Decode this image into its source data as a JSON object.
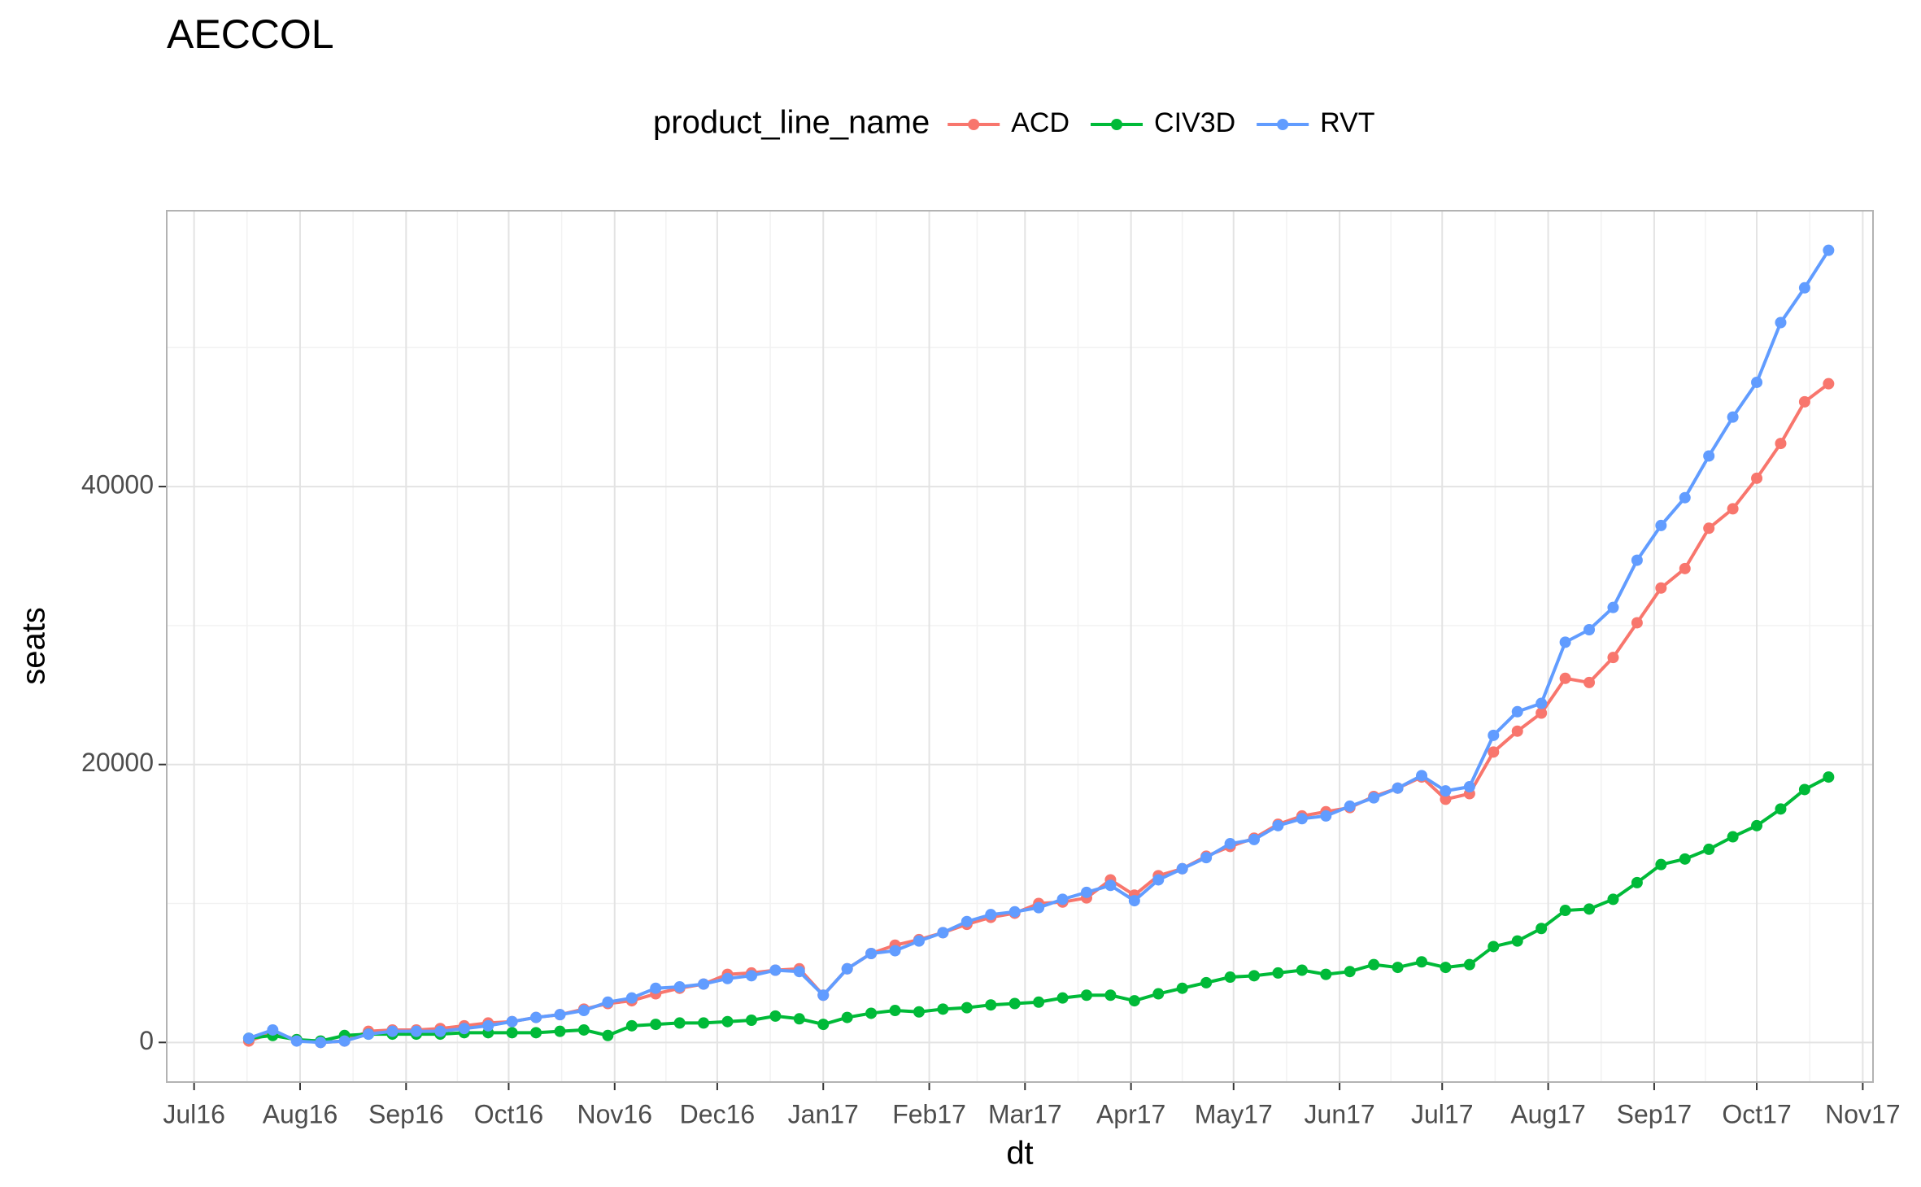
{
  "chart_data": {
    "type": "line",
    "title": "AECCOL",
    "x_label": "dt",
    "y_label": "seats",
    "legend_title": "product_line_name",
    "legend_position": "top",
    "x": [
      "2016-07-17",
      "2016-07-24",
      "2016-07-31",
      "2016-08-07",
      "2016-08-14",
      "2016-08-21",
      "2016-08-28",
      "2016-09-04",
      "2016-09-11",
      "2016-09-18",
      "2016-09-25",
      "2016-10-02",
      "2016-10-09",
      "2016-10-16",
      "2016-10-23",
      "2016-10-30",
      "2016-11-06",
      "2016-11-13",
      "2016-11-20",
      "2016-11-27",
      "2016-12-04",
      "2016-12-11",
      "2016-12-18",
      "2016-12-25",
      "2017-01-01",
      "2017-01-08",
      "2017-01-15",
      "2017-01-22",
      "2017-01-29",
      "2017-02-05",
      "2017-02-12",
      "2017-02-19",
      "2017-02-26",
      "2017-03-05",
      "2017-03-12",
      "2017-03-19",
      "2017-03-26",
      "2017-04-02",
      "2017-04-09",
      "2017-04-16",
      "2017-04-23",
      "2017-04-30",
      "2017-05-07",
      "2017-05-14",
      "2017-05-21",
      "2017-05-28",
      "2017-06-04",
      "2017-06-11",
      "2017-06-18",
      "2017-06-25",
      "2017-07-02",
      "2017-07-09",
      "2017-07-16",
      "2017-07-23",
      "2017-07-30",
      "2017-08-06",
      "2017-08-13",
      "2017-08-20",
      "2017-08-27",
      "2017-09-03",
      "2017-09-10",
      "2017-09-17",
      "2017-09-24",
      "2017-10-01",
      "2017-10-08",
      "2017-10-15",
      "2017-10-22"
    ],
    "series": [
      {
        "name": "ACD",
        "color": "#F8766D",
        "values": [
          100,
          700,
          200,
          0,
          100,
          800,
          900,
          900,
          1000,
          1200,
          1400,
          1500,
          1800,
          2000,
          2400,
          2800,
          3000,
          3500,
          3900,
          4200,
          4900,
          5000,
          5200,
          5300,
          3400,
          5300,
          6400,
          7000,
          7400,
          7900,
          8500,
          9000,
          9300,
          10000,
          10100,
          10400,
          11700,
          10600,
          12000,
          12500,
          13400,
          14100,
          14700,
          15700,
          16300,
          16600,
          16900,
          17700,
          18300,
          19100,
          17500,
          17900,
          20900,
          22400,
          23700,
          26200,
          25900,
          27700,
          30200,
          32700,
          34100,
          37000,
          38400,
          40600,
          43100,
          46100,
          47400
        ]
      },
      {
        "name": "CIV3D",
        "color": "#00BA38",
        "values": [
          300,
          500,
          200,
          100,
          500,
          600,
          600,
          600,
          600,
          700,
          700,
          700,
          700,
          800,
          900,
          500,
          1200,
          1300,
          1400,
          1400,
          1500,
          1600,
          1900,
          1700,
          1300,
          1800,
          2100,
          2300,
          2200,
          2400,
          2500,
          2700,
          2800,
          2900,
          3200,
          3400,
          3400,
          3000,
          3500,
          3900,
          4300,
          4700,
          4800,
          5000,
          5200,
          4900,
          5100,
          5600,
          5400,
          5800,
          5400,
          5600,
          6900,
          7300,
          8200,
          9500,
          9600,
          10300,
          11500,
          12800,
          13200,
          13900,
          14800,
          15600,
          16800,
          18200,
          19100
        ]
      },
      {
        "name": "RVT",
        "color": "#619CFF",
        "values": [
          300,
          900,
          100,
          0,
          100,
          600,
          800,
          800,
          800,
          1000,
          1200,
          1500,
          1800,
          2000,
          2300,
          2900,
          3200,
          3900,
          4000,
          4200,
          4600,
          4800,
          5200,
          5100,
          3400,
          5300,
          6400,
          6600,
          7300,
          7900,
          8700,
          9200,
          9400,
          9700,
          10300,
          10800,
          11300,
          10200,
          11700,
          12500,
          13300,
          14300,
          14600,
          15600,
          16100,
          16300,
          17000,
          17600,
          18300,
          19200,
          18100,
          18400,
          22100,
          23800,
          24400,
          28800,
          29700,
          31300,
          34700,
          37200,
          39200,
          42200,
          45000,
          47500,
          51800,
          54300,
          57000
        ]
      }
    ],
    "xlim": [
      "2016-06-23",
      "2017-11-04"
    ],
    "xticks": [
      {
        "value": "2016-07-01",
        "label": "Jul16"
      },
      {
        "value": "2016-08-01",
        "label": "Aug16"
      },
      {
        "value": "2016-09-01",
        "label": "Sep16"
      },
      {
        "value": "2016-10-01",
        "label": "Oct16"
      },
      {
        "value": "2016-11-01",
        "label": "Nov16"
      },
      {
        "value": "2016-12-01",
        "label": "Dec16"
      },
      {
        "value": "2017-01-01",
        "label": "Jan17"
      },
      {
        "value": "2017-02-01",
        "label": "Feb17"
      },
      {
        "value": "2017-03-01",
        "label": "Mar17"
      },
      {
        "value": "2017-04-01",
        "label": "Apr17"
      },
      {
        "value": "2017-05-01",
        "label": "May17"
      },
      {
        "value": "2017-06-01",
        "label": "Jun17"
      },
      {
        "value": "2017-07-01",
        "label": "Jul17"
      },
      {
        "value": "2017-08-01",
        "label": "Aug17"
      },
      {
        "value": "2017-09-01",
        "label": "Sep17"
      },
      {
        "value": "2017-10-01",
        "label": "Oct17"
      },
      {
        "value": "2017-11-01",
        "label": "Nov17"
      }
    ],
    "ylim": [
      -2850,
      59850
    ],
    "yticks": [
      0,
      20000,
      40000
    ],
    "grid": true
  }
}
